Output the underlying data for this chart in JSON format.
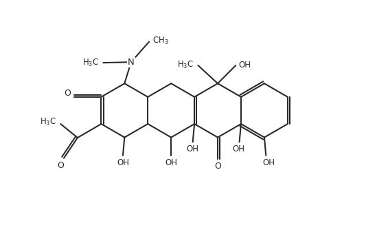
{
  "bg_color": "#ffffff",
  "line_color": "#2a2a2a",
  "lw": 1.5,
  "fig_width": 5.49,
  "fig_height": 3.4,
  "dpi": 100,
  "xlim": [
    0,
    10.5
  ],
  "ylim": [
    0,
    7
  ]
}
